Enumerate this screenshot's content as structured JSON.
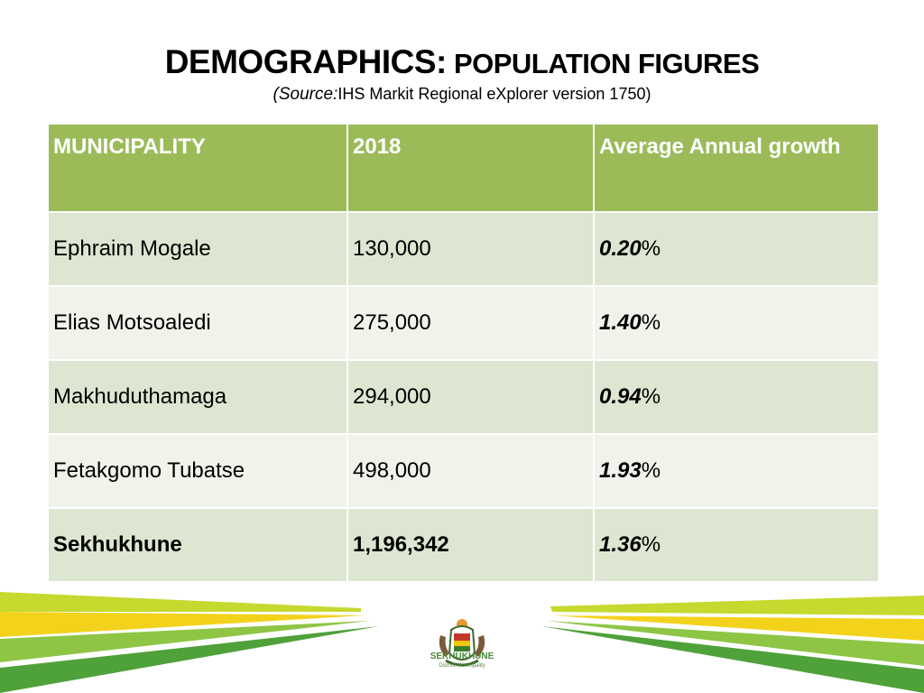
{
  "slide": {
    "title_main": "DEMOGRAPHICS:",
    "title_rest": " POPULATION FIGURES",
    "subtitle_prefix": "(Source:",
    "subtitle_text": "IHS Markit Regional eXplorer version 1750)"
  },
  "table": {
    "headers": [
      "MUNICIPALITY",
      "2018",
      "Average Annual growth"
    ],
    "rows": [
      {
        "municipality": "Ephraim Mogale",
        "population": "130,000",
        "growth": "0.20",
        "pct": "%"
      },
      {
        "municipality": "Elias Motsoaledi",
        "population": "275,000",
        "growth": "1.40",
        "pct": "%"
      },
      {
        "municipality": "Makhuduthamaga",
        "population": "294,000",
        "growth": "0.94",
        "pct": "%"
      },
      {
        "municipality": "Fetakgomo Tubatse",
        "population": "498,000",
        "growth": "1.93",
        "pct": "%"
      },
      {
        "municipality": "Sekhukhune",
        "population": "1,196,342",
        "growth": "1.36",
        "pct": "%"
      }
    ]
  },
  "logo": {
    "name": "SEKHUKHUNE",
    "tagline": "District Municipality",
    "icon": "municipal-crest-icon"
  },
  "colors": {
    "header_green": "#9bbb59",
    "row_dark": "#dde6d0",
    "row_light": "#eff3ea",
    "stripe_green": "#7ab648",
    "stripe_lime": "#c5d92f",
    "stripe_yellow": "#f3d21c"
  }
}
